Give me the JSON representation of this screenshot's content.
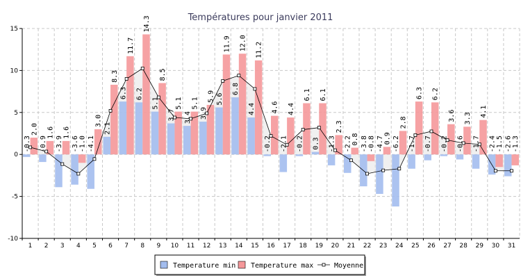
{
  "chart_data": {
    "type": "bar",
    "title": "Températures pour janvier 2011",
    "xlabel": "",
    "ylabel": "",
    "ylim": [
      -10,
      15
    ],
    "yticks": [
      -10,
      -5,
      0,
      5,
      10,
      15
    ],
    "grid": true,
    "legend_position": "bottom",
    "categories": [
      "1",
      "2",
      "3",
      "4",
      "5",
      "6",
      "7",
      "8",
      "9",
      "10",
      "11",
      "12",
      "13",
      "14",
      "15",
      "16",
      "17",
      "18",
      "19",
      "20",
      "21",
      "22",
      "23",
      "24",
      "25",
      "26",
      "27",
      "28",
      "29",
      "30",
      "31"
    ],
    "series": [
      {
        "name": "Temperature min",
        "type": "bar",
        "color": "#a3bdee",
        "values": [
          -0.3,
          -0.9,
          -3.9,
          -3.6,
          -4.1,
          2.1,
          6.3,
          6.2,
          5.1,
          3.7,
          3.4,
          3.9,
          5.6,
          6.8,
          4.4,
          -0.2,
          -2.1,
          -0.2,
          0.3,
          -1.3,
          -2.2,
          -3.8,
          -4.7,
          -6.2,
          -1.7,
          -0.7,
          -0.2,
          -0.6,
          -1.7,
          -2.4,
          -2.6
        ],
        "labels": [
          "-0.3",
          "-0.9",
          "-3.9",
          "-3.6",
          "-4.1",
          "2.1",
          "6.3",
          "6.2",
          "5.1",
          "3.7",
          "3.4",
          "3.9",
          "5.6",
          "6.8",
          "4.4",
          "-0.2",
          "-2.1",
          "-0.2",
          "0.3",
          "-1.3",
          "-2.2",
          "-3.8",
          "-4.7",
          "-6.2",
          "-1.7",
          "-0.7",
          "-0.2",
          "-0.6",
          "-1.7",
          "-2.4",
          "-2.6"
        ]
      },
      {
        "name": "Temperature max",
        "type": "bar",
        "color": "#f5989a",
        "values": [
          2.0,
          1.6,
          1.6,
          -1.0,
          3.0,
          8.3,
          11.7,
          14.3,
          8.5,
          5.1,
          5.1,
          5.9,
          11.9,
          12.0,
          11.2,
          4.6,
          4.4,
          6.1,
          6.1,
          2.3,
          0.8,
          -0.8,
          0.9,
          2.8,
          6.3,
          6.2,
          3.6,
          3.3,
          4.1,
          -1.5,
          -1.3
        ],
        "labels": [
          "2.0",
          "1.6",
          "1.6",
          "-1.0",
          "3.0",
          "8.3",
          "11.7",
          "14.3",
          "8.5",
          "5.1",
          "5.1",
          "5.9",
          "11.9",
          "12.0",
          "11.2",
          "4.6",
          "4.4",
          "6.1",
          "6.1",
          "2.3",
          "0.8",
          "-0.8",
          "0.9",
          "2.8",
          "6.3",
          "6.2",
          "3.6",
          "3.3",
          "4.1",
          "-1.5",
          "-1.3"
        ]
      },
      {
        "name": "Moyenne",
        "type": "line",
        "color": "#000000",
        "fill": "#e4e4e4",
        "values": [
          0.85,
          0.35,
          -1.15,
          -2.3,
          -0.55,
          5.2,
          9.0,
          10.25,
          6.8,
          4.4,
          4.25,
          4.9,
          8.75,
          9.4,
          7.8,
          2.2,
          1.15,
          2.95,
          3.2,
          0.5,
          -0.7,
          -2.3,
          -1.9,
          -1.7,
          2.3,
          2.75,
          1.7,
          1.35,
          1.2,
          -1.95,
          -1.95
        ]
      }
    ]
  }
}
